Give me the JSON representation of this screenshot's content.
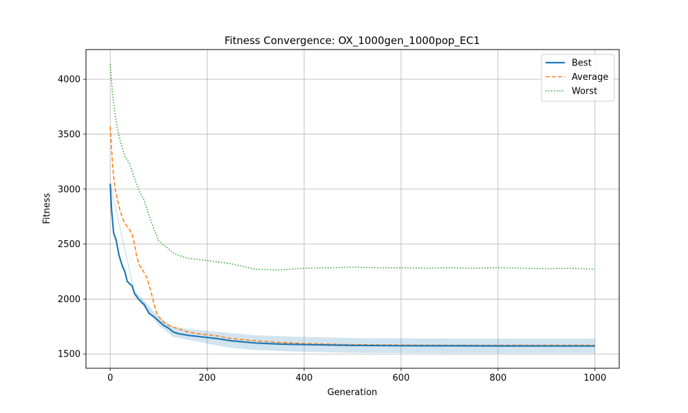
{
  "chart_data": {
    "type": "line",
    "title": "Fitness Convergence: OX_1000gen_1000pop_EC1",
    "xlabel": "Generation",
    "ylabel": "Fitness",
    "xlim": [
      -50,
      1050
    ],
    "ylim": [
      1370,
      4270
    ],
    "xticks": [
      0,
      200,
      400,
      600,
      800,
      1000
    ],
    "yticks": [
      1500,
      2000,
      2500,
      3000,
      3500,
      4000
    ],
    "grid": true,
    "legend_position": "top-right",
    "series": [
      {
        "name": "Best",
        "style": "solid",
        "color": "#1f77b4",
        "points": [
          [
            0,
            3050
          ],
          [
            3,
            2800
          ],
          [
            7,
            2600
          ],
          [
            12,
            2540
          ],
          [
            18,
            2400
          ],
          [
            25,
            2300
          ],
          [
            30,
            2250
          ],
          [
            35,
            2160
          ],
          [
            45,
            2120
          ],
          [
            50,
            2050
          ],
          [
            60,
            1990
          ],
          [
            70,
            1950
          ],
          [
            80,
            1870
          ],
          [
            90,
            1840
          ],
          [
            100,
            1800
          ],
          [
            110,
            1760
          ],
          [
            120,
            1735
          ],
          [
            130,
            1700
          ],
          [
            140,
            1685
          ],
          [
            160,
            1670
          ],
          [
            180,
            1660
          ],
          [
            200,
            1650
          ],
          [
            220,
            1640
          ],
          [
            250,
            1620
          ],
          [
            300,
            1600
          ],
          [
            350,
            1590
          ],
          [
            400,
            1585
          ],
          [
            500,
            1578
          ],
          [
            600,
            1575
          ],
          [
            700,
            1574
          ],
          [
            800,
            1573
          ],
          [
            900,
            1572
          ],
          [
            1000,
            1572
          ]
        ]
      },
      {
        "name": "Average",
        "style": "dashed",
        "color": "#ff7f0e",
        "points": [
          [
            0,
            3570
          ],
          [
            5,
            3200
          ],
          [
            10,
            3000
          ],
          [
            15,
            2900
          ],
          [
            20,
            2810
          ],
          [
            25,
            2740
          ],
          [
            30,
            2690
          ],
          [
            40,
            2630
          ],
          [
            45,
            2590
          ],
          [
            50,
            2500
          ],
          [
            55,
            2380
          ],
          [
            60,
            2310
          ],
          [
            70,
            2240
          ],
          [
            75,
            2200
          ],
          [
            80,
            2130
          ],
          [
            85,
            2050
          ],
          [
            90,
            1960
          ],
          [
            95,
            1880
          ],
          [
            100,
            1840
          ],
          [
            110,
            1790
          ],
          [
            120,
            1760
          ],
          [
            140,
            1730
          ],
          [
            160,
            1700
          ],
          [
            180,
            1685
          ],
          [
            200,
            1675
          ],
          [
            220,
            1665
          ],
          [
            250,
            1640
          ],
          [
            300,
            1620
          ],
          [
            350,
            1605
          ],
          [
            400,
            1595
          ],
          [
            500,
            1585
          ],
          [
            600,
            1582
          ],
          [
            700,
            1580
          ],
          [
            800,
            1580
          ],
          [
            900,
            1580
          ],
          [
            1000,
            1580
          ]
        ]
      },
      {
        "name": "Worst",
        "style": "dotted",
        "color": "#2ca02c",
        "points": [
          [
            0,
            4140
          ],
          [
            5,
            3850
          ],
          [
            10,
            3680
          ],
          [
            15,
            3550
          ],
          [
            20,
            3450
          ],
          [
            25,
            3380
          ],
          [
            30,
            3300
          ],
          [
            40,
            3230
          ],
          [
            50,
            3100
          ],
          [
            60,
            2980
          ],
          [
            70,
            2900
          ],
          [
            80,
            2760
          ],
          [
            90,
            2640
          ],
          [
            100,
            2530
          ],
          [
            110,
            2490
          ],
          [
            120,
            2460
          ],
          [
            130,
            2420
          ],
          [
            140,
            2400
          ],
          [
            160,
            2370
          ],
          [
            180,
            2360
          ],
          [
            200,
            2350
          ],
          [
            250,
            2320
          ],
          [
            300,
            2270
          ],
          [
            350,
            2265
          ],
          [
            400,
            2280
          ],
          [
            450,
            2285
          ],
          [
            500,
            2290
          ],
          [
            550,
            2285
          ],
          [
            600,
            2285
          ],
          [
            650,
            2280
          ],
          [
            700,
            2285
          ],
          [
            750,
            2280
          ],
          [
            800,
            2285
          ],
          [
            850,
            2280
          ],
          [
            900,
            2275
          ],
          [
            950,
            2280
          ],
          [
            1000,
            2270
          ]
        ]
      }
    ],
    "band": {
      "around": "Best",
      "color": "#1f77b4",
      "opacity": 0.2,
      "upper": [
        [
          0,
          3070
        ],
        [
          50,
          2080
        ],
        [
          100,
          1840
        ],
        [
          130,
          1745
        ],
        [
          200,
          1710
        ],
        [
          250,
          1690
        ],
        [
          300,
          1670
        ],
        [
          400,
          1655
        ],
        [
          500,
          1645
        ],
        [
          700,
          1640
        ],
        [
          1000,
          1640
        ]
      ],
      "lower": [
        [
          0,
          3030
        ],
        [
          50,
          2030
        ],
        [
          100,
          1760
        ],
        [
          130,
          1655
        ],
        [
          200,
          1595
        ],
        [
          250,
          1555
        ],
        [
          300,
          1535
        ],
        [
          400,
          1520
        ],
        [
          500,
          1510
        ],
        [
          700,
          1505
        ],
        [
          1000,
          1505
        ]
      ]
    }
  }
}
